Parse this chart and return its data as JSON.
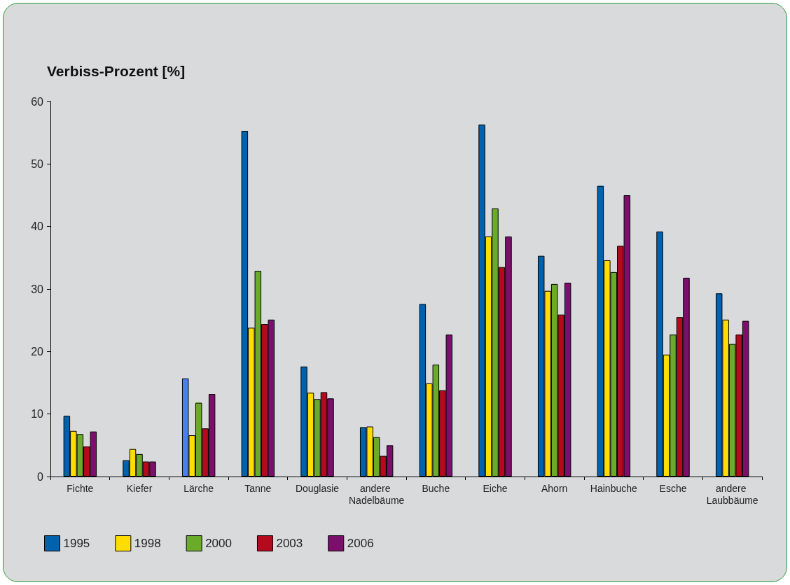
{
  "chart_data": {
    "type": "bar",
    "title": "Verbiss-Prozent [%]",
    "categories": [
      "Fichte",
      "Kiefer",
      "Lärche",
      "Tanne",
      "Douglasie",
      "andere Nadelbäume",
      "Buche",
      "Eiche",
      "Ahorn",
      "Hainbuche",
      "Esche",
      "andere Laubbäume"
    ],
    "series": [
      {
        "name": "1995",
        "color": "#0061ad",
        "colors": [
          "#0061ad",
          "#0061ad",
          "#4a7ff0",
          "#0061ad",
          "#0061ad",
          "#0061ad",
          "#0061ad",
          "#0061ad",
          "#0061ad",
          "#0061ad",
          "#0061ad",
          "#0061ad"
        ],
        "values": [
          9.7,
          2.6,
          15.7,
          55.3,
          17.6,
          7.9,
          27.6,
          56.3,
          35.3,
          46.5,
          39.2,
          29.3
        ]
      },
      {
        "name": "1998",
        "color": "#ffdd00",
        "values": [
          7.3,
          4.4,
          6.6,
          23.8,
          13.4,
          8.0,
          14.9,
          38.4,
          29.7,
          34.6,
          19.5,
          25.1
        ]
      },
      {
        "name": "2000",
        "color": "#6aab2a",
        "values": [
          6.8,
          3.6,
          11.8,
          32.9,
          12.4,
          6.3,
          17.9,
          42.9,
          30.8,
          32.7,
          22.7,
          21.2
        ]
      },
      {
        "name": "2003",
        "color": "#b40a1e",
        "values": [
          4.8,
          2.4,
          7.7,
          24.4,
          13.5,
          3.3,
          13.8,
          33.5,
          25.9,
          36.9,
          25.5,
          22.7
        ]
      },
      {
        "name": "2006",
        "color": "#7b0f6b",
        "values": [
          7.2,
          2.4,
          13.2,
          25.1,
          12.5,
          5.0,
          22.7,
          38.4,
          31.0,
          45.0,
          31.8,
          24.9
        ]
      }
    ],
    "ylim": [
      0,
      60
    ],
    "yticks": [
      0,
      10,
      20,
      30,
      40,
      50,
      60
    ],
    "grid": false,
    "legend": "bottom left"
  }
}
